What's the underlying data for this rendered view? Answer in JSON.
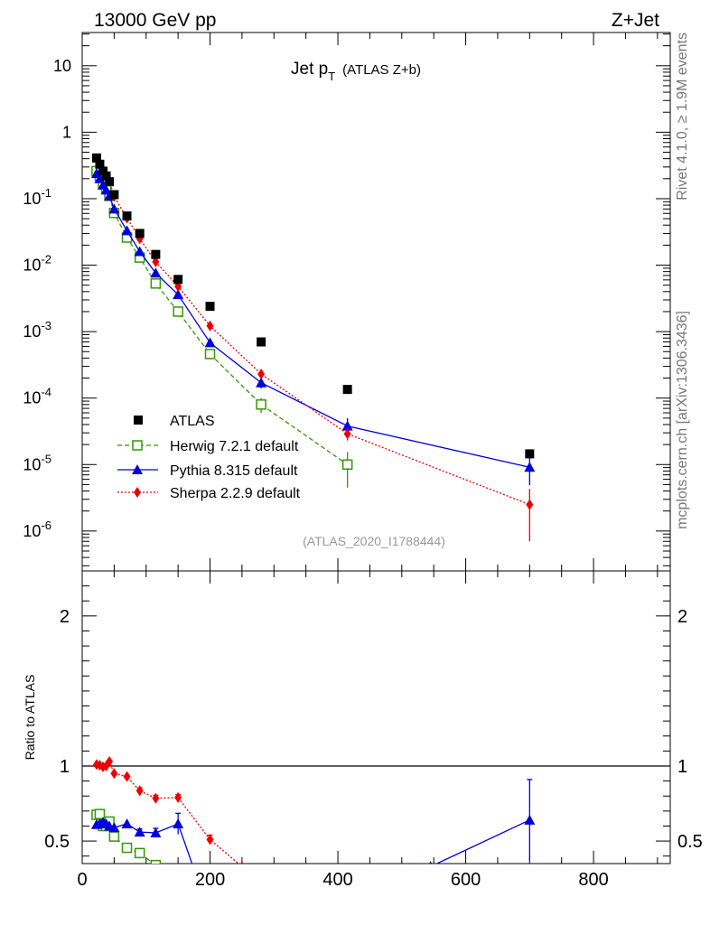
{
  "header": {
    "left": "13000 GeV pp",
    "right": "Z+Jet"
  },
  "side": {
    "rivet": "Rivet 4.1.0, ≥ 1.9M events",
    "mcplots": "mcplots.cern.ch [arXiv:1306.3436]"
  },
  "chart_data": {
    "type": "line",
    "title_main": "Jet p",
    "title_sub": "T",
    "title_extra": "(ATLAS Z+b)",
    "analysis_id": "(ATLAS_2020_I1788444)",
    "xlim": [
      0,
      920
    ],
    "main_ylim_log10": [
      -6.6,
      1.5
    ],
    "main_yticks": [
      {
        "label": "10",
        "value": 10
      },
      {
        "label": "1",
        "value": 1
      },
      {
        "label": "10",
        "exp": "-1",
        "value": 0.1
      },
      {
        "label": "10",
        "exp": "-2",
        "value": 0.01
      },
      {
        "label": "10",
        "exp": "-3",
        "value": 0.001
      },
      {
        "label": "10",
        "exp": "-4",
        "value": 0.0001
      },
      {
        "label": "10",
        "exp": "-5",
        "value": 1e-05
      },
      {
        "label": "10",
        "exp": "-6",
        "value": 1e-06
      }
    ],
    "ratio_ylabel": "Ratio to ATLAS",
    "ratio_ylim": [
      0.35,
      2.3
    ],
    "ratio_yticks": [
      {
        "label": "0.5",
        "value": 0.5
      },
      {
        "label": "1",
        "value": 1
      },
      {
        "label": "2",
        "value": 2
      }
    ],
    "xticks": [
      {
        "label": "0",
        "value": 0
      },
      {
        "label": "200",
        "value": 200
      },
      {
        "label": "400",
        "value": 400
      },
      {
        "label": "600",
        "value": 600
      },
      {
        "label": "800",
        "value": 800
      }
    ],
    "data": {
      "name": "ATLAS",
      "x": [
        22.5,
        27.5,
        32.5,
        37.5,
        42.5,
        50,
        70,
        90,
        115,
        150,
        200,
        280,
        415,
        700
      ],
      "y": [
        0.41,
        0.33,
        0.26,
        0.22,
        0.18,
        0.115,
        0.055,
        0.03,
        0.0145,
        0.0061,
        0.0024,
        0.0007,
        0.000135,
        1.45e-05
      ]
    },
    "series": [
      {
        "name": "Herwig 7.2.1 default",
        "color": "#339900",
        "marker": "open-square",
        "dash": "5,3",
        "x": [
          22.5,
          27.5,
          32.5,
          37.5,
          42.5,
          50,
          70,
          90,
          115,
          150,
          200,
          280,
          415
        ],
        "y": [
          0.26,
          0.22,
          0.17,
          0.14,
          0.11,
          0.061,
          0.026,
          0.013,
          0.0053,
          0.002,
          0.00046,
          8e-05,
          1e-05
        ],
        "yerr": [
          0,
          0,
          0,
          0,
          0,
          0,
          0,
          0,
          0,
          0,
          4e-05,
          2e-05,
          5.5e-06
        ],
        "ratio_x": [
          22.5,
          27.5,
          32.5,
          37.5,
          42.5,
          50,
          70,
          90,
          115
        ],
        "ratio_y": [
          0.675,
          0.68,
          0.6,
          0.6,
          0.63,
          0.53,
          0.455,
          0.42,
          0.34
        ]
      },
      {
        "name": "Pythia 8.315 default",
        "color": "#0000dd",
        "marker": "triangle",
        "dash": "",
        "x": [
          22.5,
          27.5,
          32.5,
          37.5,
          42.5,
          50,
          70,
          90,
          115,
          150,
          200,
          280,
          415,
          700
        ],
        "y": [
          0.24,
          0.2,
          0.16,
          0.135,
          0.11,
          0.07,
          0.033,
          0.016,
          0.0076,
          0.0036,
          0.00068,
          0.00017,
          3.8e-05,
          9.1e-06
        ],
        "yerr": [
          0,
          0,
          0,
          0,
          0,
          0,
          0,
          0,
          0,
          0,
          6e-05,
          3e-05,
          1.2e-05,
          4.2e-06
        ],
        "ratio_x": [
          22.5,
          27.5,
          32.5,
          37.5,
          42.5,
          50,
          70,
          90,
          115,
          150,
          180,
          545,
          700
        ],
        "ratio_y": [
          0.61,
          0.615,
          0.625,
          0.615,
          0.6,
          0.59,
          0.615,
          0.56,
          0.555,
          0.615,
          0.25,
          0.33,
          0.64
        ],
        "ratio_yerr": [
          0,
          0,
          0,
          0,
          0,
          0,
          0,
          0.02,
          0.03,
          0.07,
          0,
          0,
          0.27
        ]
      },
      {
        "name": "Sherpa 2.2.9 default",
        "color": "#ee0000",
        "marker": "diamond",
        "dash": "2,2",
        "x": [
          22.5,
          27.5,
          32.5,
          37.5,
          42.5,
          50,
          70,
          90,
          115,
          150,
          200,
          280,
          415,
          700
        ],
        "y": [
          0.4,
          0.32,
          0.26,
          0.22,
          0.185,
          0.108,
          0.051,
          0.025,
          0.0112,
          0.0048,
          0.00122,
          0.00023,
          2.9e-05,
          2.5e-06
        ],
        "yerr": [
          0,
          0,
          0,
          0,
          0,
          0,
          0,
          0,
          0,
          0,
          0,
          3e-05,
          6e-06,
          1.8e-06
        ],
        "ratio_x": [
          22.5,
          27.5,
          32.5,
          37.5,
          42.5,
          50,
          70,
          90,
          115,
          150,
          200,
          250
        ],
        "ratio_y": [
          1.01,
          1.005,
          0.995,
          1.0,
          1.03,
          0.95,
          0.93,
          0.835,
          0.785,
          0.79,
          0.51,
          0.33
        ],
        "ratio_yerr": [
          0,
          0,
          0,
          0,
          0,
          0,
          0,
          0.02,
          0.02,
          0.02,
          0.03,
          0
        ]
      }
    ]
  }
}
